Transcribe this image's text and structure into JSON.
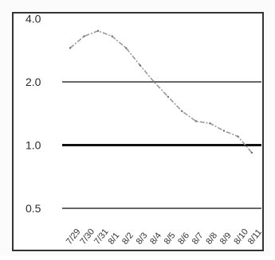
{
  "chart_data": {
    "type": "line",
    "title": "",
    "xlabel": "",
    "ylabel": "",
    "y_scale": "log",
    "ylim": [
      0.45,
      4.2
    ],
    "grid": false,
    "legend": "none",
    "y_ticks": [
      {
        "value": 4.0,
        "label": "4.0"
      },
      {
        "value": 2.0,
        "label": "2.0"
      },
      {
        "value": 1.0,
        "label": "1.0"
      },
      {
        "value": 0.5,
        "label": "0.5"
      }
    ],
    "reference_lines": [
      2.0,
      1.0,
      0.5
    ],
    "x_tick_labels": [
      "7/29",
      "7/30",
      "7/31",
      "8/1",
      "8/2",
      "8/3",
      "8/4",
      "8/5",
      "8/6",
      "8/7",
      "8/8",
      "8/9",
      "8/10",
      "8/11"
    ],
    "series": [
      {
        "x": [
          "7/29",
          "7/30",
          "7/31",
          "8/1",
          "8/2",
          "8/3",
          "8/4",
          "8/5",
          "8/6",
          "8/7",
          "8/8",
          "8/9",
          "8/10",
          "8/11"
        ],
        "values": [
          2.9,
          3.3,
          3.5,
          3.3,
          2.9,
          2.4,
          2.0,
          1.7,
          1.45,
          1.3,
          1.27,
          1.17,
          1.1,
          0.92
        ]
      }
    ],
    "colors": {
      "series_line": "#9a9a9a",
      "reference_line": "#333333",
      "reference_line_emphasis": "#111111",
      "frame": "#333333"
    }
  }
}
